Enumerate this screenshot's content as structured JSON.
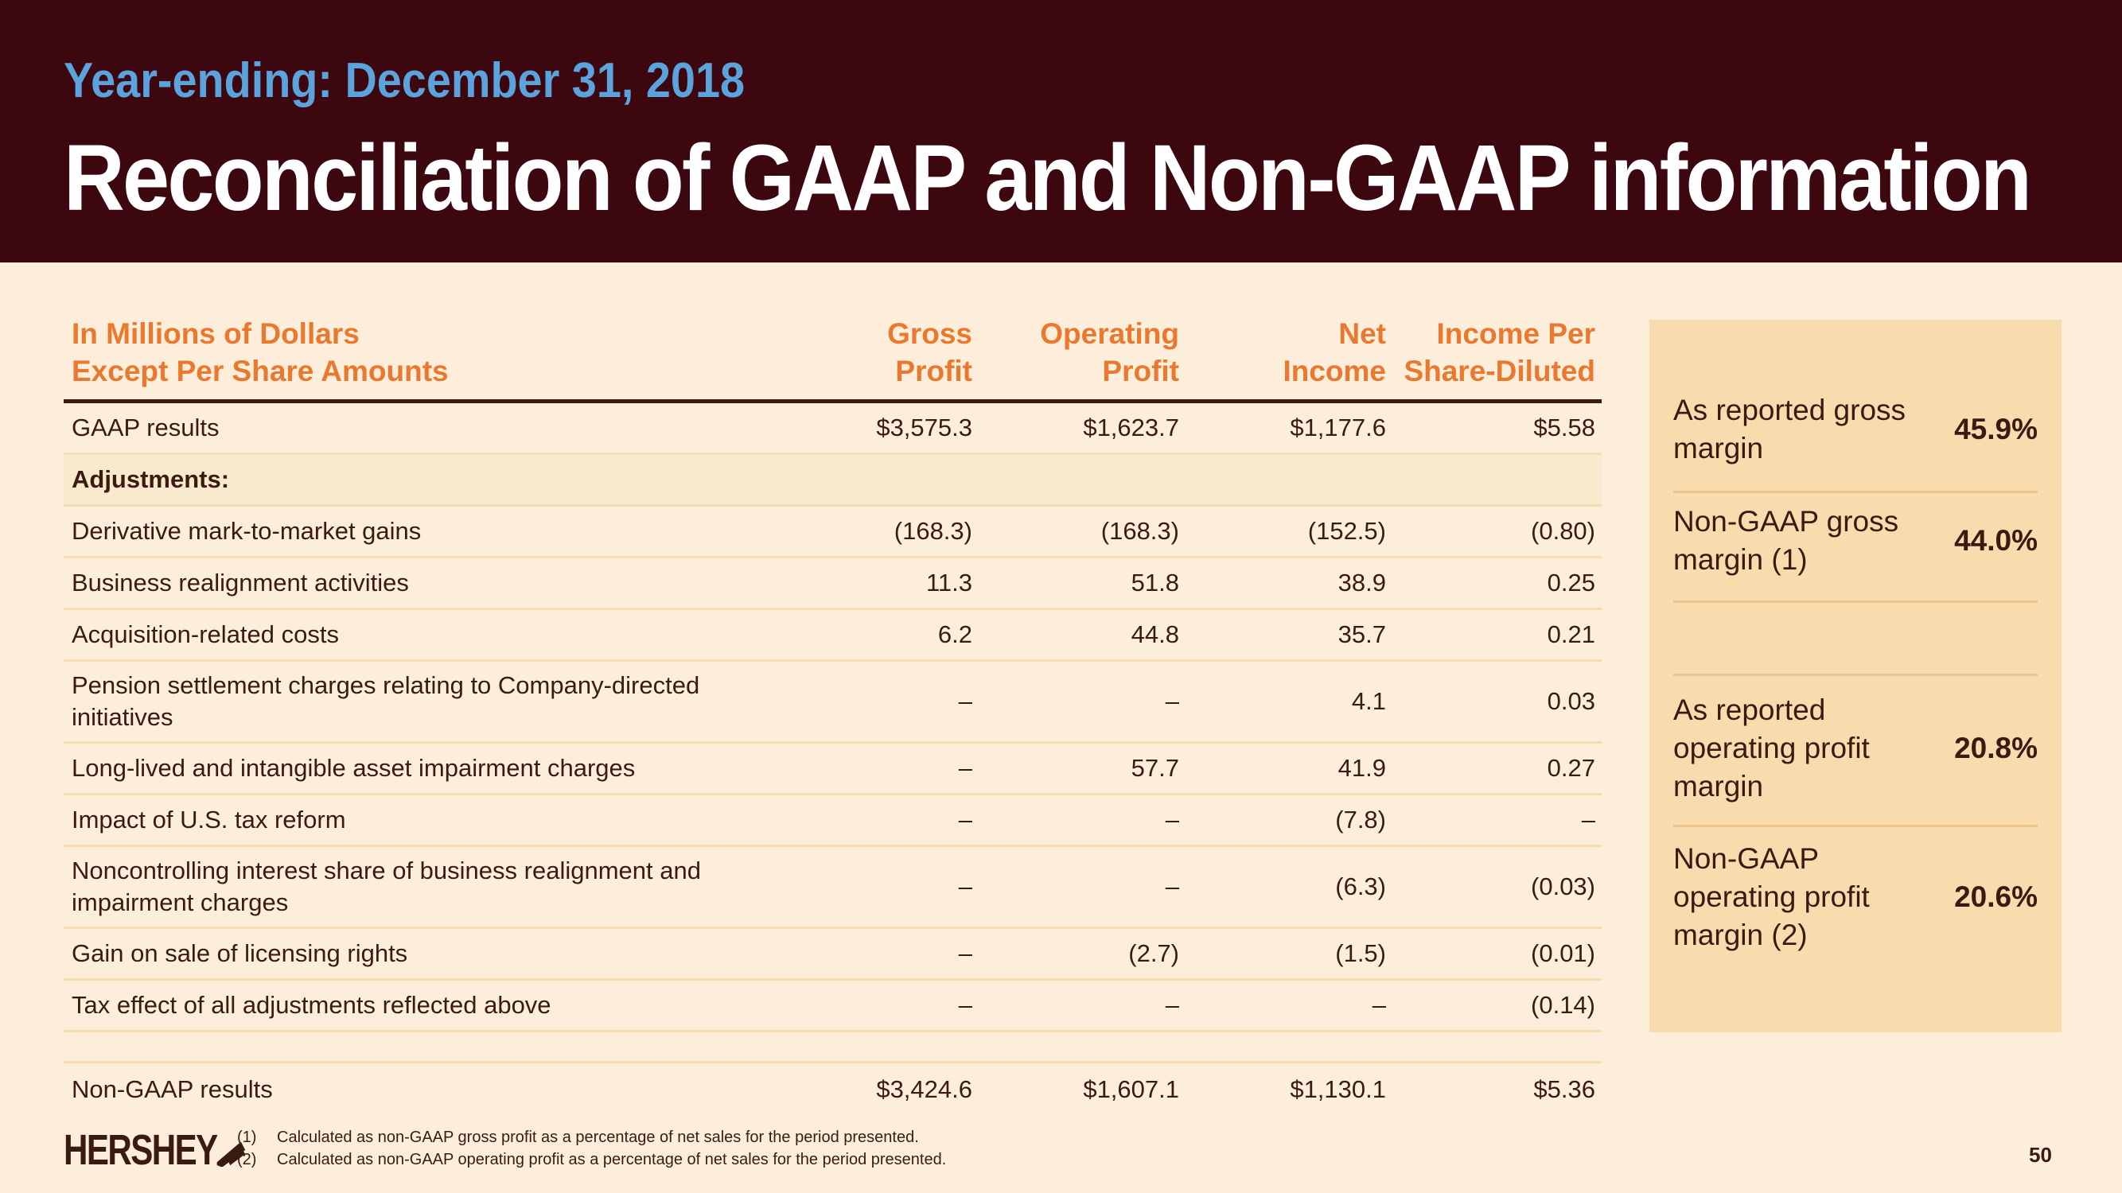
{
  "header": {
    "subtitle": "Year-ending: December 31, 2018",
    "title": "Reconciliation of GAAP and Non-GAAP information"
  },
  "table": {
    "headers": [
      {
        "line1": "In Millions of Dollars",
        "line2": "Except Per Share Amounts"
      },
      {
        "line1": "Gross",
        "line2": "Profit"
      },
      {
        "line1": "Operating",
        "line2": "Profit"
      },
      {
        "line1": "Net",
        "line2": "Income"
      },
      {
        "line1": "Income Per",
        "line2": "Share-Diluted"
      }
    ],
    "gaap": {
      "label": "GAAP results",
      "values": [
        "$3,575.3",
        "$1,623.7",
        "$1,177.6",
        "$5.58"
      ]
    },
    "adjustments_label": "Adjustments:",
    "rows": [
      {
        "label": "Derivative mark-to-market gains",
        "values": [
          "(168.3)",
          "(168.3)",
          "(152.5)",
          "(0.80)"
        ]
      },
      {
        "label": "Business realignment activities",
        "values": [
          "11.3",
          "51.8",
          "38.9",
          "0.25"
        ]
      },
      {
        "label": "Acquisition-related costs",
        "values": [
          "6.2",
          "44.8",
          "35.7",
          "0.21"
        ]
      },
      {
        "label": "Pension settlement charges relating to Company-directed initiatives",
        "values": [
          "–",
          "–",
          "4.1",
          "0.03"
        ]
      },
      {
        "label": "Long-lived and intangible asset impairment charges",
        "values": [
          "–",
          "57.7",
          "41.9",
          "0.27"
        ]
      },
      {
        "label": "Impact of U.S. tax reform",
        "values": [
          "–",
          "–",
          "(7.8)",
          "–"
        ]
      },
      {
        "label": "Noncontrolling interest share of business realignment and impairment charges",
        "values": [
          "–",
          "–",
          "(6.3)",
          "(0.03)"
        ]
      },
      {
        "label": "Gain on sale of licensing rights",
        "values": [
          "–",
          "(2.7)",
          "(1.5)",
          "(0.01)"
        ]
      },
      {
        "label": "Tax effect of all adjustments reflected above",
        "values": [
          "–",
          "–",
          "–",
          "(0.14)"
        ]
      }
    ],
    "nongaap": {
      "label": "Non-GAAP results",
      "values": [
        "$3,424.6",
        "$1,607.1",
        "$1,130.1",
        "$5.36"
      ]
    }
  },
  "side": [
    {
      "label": "As reported gross margin",
      "value": "45.9%"
    },
    {
      "label": "Non-GAAP gross margin (1)",
      "value": "44.0%"
    },
    {
      "label": "As reported operating profit margin",
      "value": "20.8%"
    },
    {
      "label": "Non-GAAP operating profit margin (2)",
      "value": "20.6%"
    }
  ],
  "footer": {
    "logo": "HERSHEY",
    "notes": [
      {
        "num": "(1)",
        "text": "Calculated as non-GAAP gross profit as a percentage of net sales for the period presented."
      },
      {
        "num": "(2)",
        "text": "Calculated as non-GAAP operating profit as a percentage of net sales for the period presented."
      }
    ],
    "page": "50"
  }
}
